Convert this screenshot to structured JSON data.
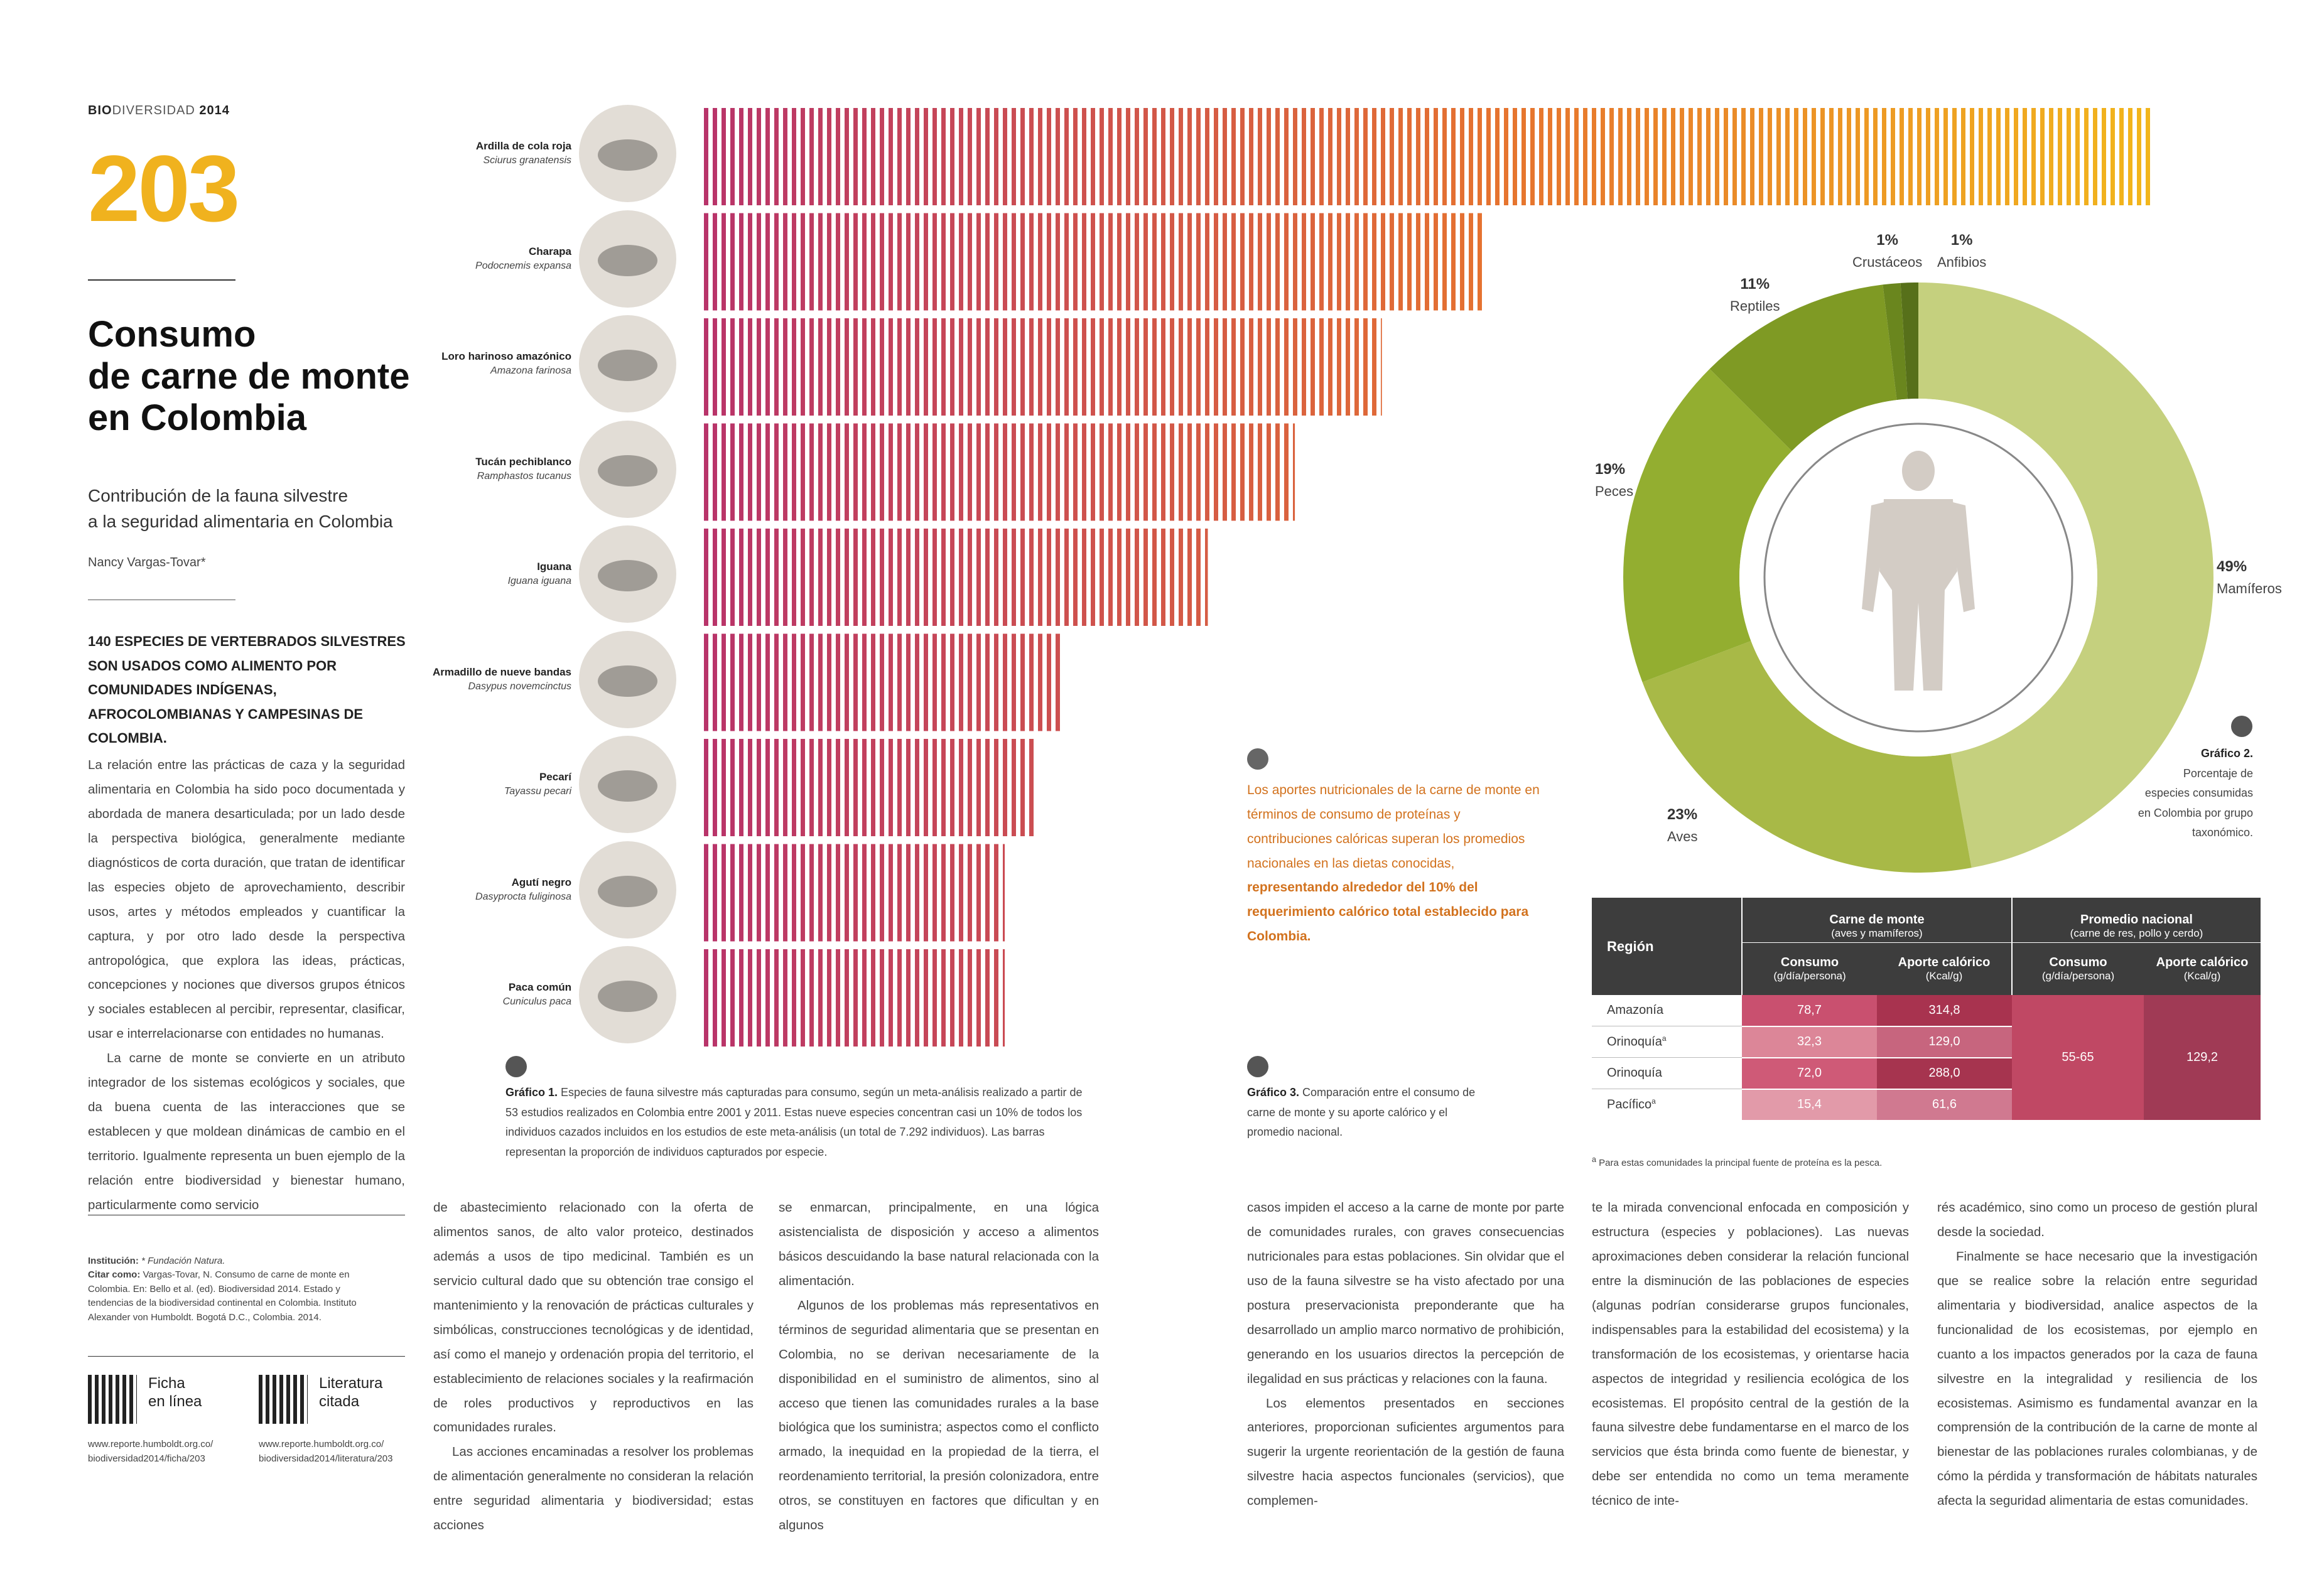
{
  "header": {
    "bold": "BIO",
    "light": "DIVERSIDAD",
    "year": "2014"
  },
  "page_number": "203",
  "title": {
    "line1": "Consumo",
    "line2": "de carne de monte",
    "line3": "en Colombia"
  },
  "subtitle": {
    "line1": "Contribución de la fauna silvestre",
    "line2": "a la seguridad alimentaria en Colombia"
  },
  "author": "Nancy Vargas-Tovar*",
  "lead": "140 ESPECIES DE VERTEBRADOS SILVESTRES SON USADOS COMO ALIMENTO POR COMUNIDADES INDÍGENAS, AFROCOLOMBIANAS Y CAMPESINAS DE COLOMBIA.",
  "col1": {
    "p1": "La relación entre las prácticas de caza y la seguridad alimentaria en Colombia ha sido poco documentada y abordada de manera desarticulada; por un lado desde la perspectiva biológica, generalmente mediante diagnósticos de corta duración, que tratan de identificar las especies objeto de aprovechamiento, describir usos, artes y métodos empleados y cuantificar la captura, y por otro lado desde la perspectiva antropológica, que explora las ideas, prácticas, concepciones y nociones que diversos grupos étnicos y sociales establecen al percibir, representar, clasificar, usar e interrelacionarse con entidades no humanas.",
    "p2": "La carne de monte se convierte en un atributo integrador de los sistemas ecológicos y sociales, que da buena cuenta de las interacciones que se establecen y que moldean dinámicas de cambio en el territorio. Igualmente representa un buen ejemplo de la relación entre biodiversidad y bienestar humano, particularmente como servicio"
  },
  "institution": {
    "label": "Institución:",
    "value": "* Fundación Natura."
  },
  "cite": {
    "label": "Citar como:",
    "value": "Vargas-Tovar, N. Consumo de carne de monte en Colombia. En: Bello et al. (ed). Biodiversidad 2014. Estado y tendencias de la biodiversidad continental en Colombia. Instituto Alexander von Humboldt. Bogotá D.C., Colombia. 2014."
  },
  "links": [
    {
      "label1": "Ficha",
      "label2": "en línea",
      "url1": "www.reporte.humboldt.org.co/",
      "url2": "biodiversidad2014/ficha/203"
    },
    {
      "label1": "Literatura",
      "label2": "citada",
      "url1": "www.reporte.humboldt.org.co/",
      "url2": "biodiversidad2014/literatura/203"
    }
  ],
  "species": [
    {
      "name": "Ardilla de cola roja",
      "sci": "Sciurus granatensis",
      "icon": "squirrel-icon"
    },
    {
      "name": "Charapa",
      "sci": "Podocnemis expansa",
      "icon": "turtle-icon"
    },
    {
      "name": "Loro harinoso amazónico",
      "sci": "Amazona farinosa",
      "icon": "parrot-icon"
    },
    {
      "name": "Tucán pechiblanco",
      "sci": "Ramphastos tucanus",
      "icon": "toucan-icon"
    },
    {
      "name": "Iguana",
      "sci": "Iguana iguana",
      "icon": "iguana-icon"
    },
    {
      "name": "Armadillo de nueve bandas",
      "sci": "Dasypus novemcinctus",
      "icon": "armadillo-icon"
    },
    {
      "name": "Pecarí",
      "sci": "Tayassu pecari",
      "icon": "peccary-icon"
    },
    {
      "name": "Agutí negro",
      "sci": "Dasyprocta fuliginosa",
      "icon": "agouti-icon"
    },
    {
      "name": "Paca común",
      "sci": "Cuniculus paca",
      "icon": "paca-icon"
    }
  ],
  "chart_data": [
    {
      "type": "bar",
      "orientation": "horizontal",
      "categories": [
        "Ardilla de cola roja",
        "Charapa",
        "Loro harinoso amazónico",
        "Tucán pechiblanco",
        "Iguana",
        "Armadillo de nueve bandas",
        "Pecarí",
        "Agutí negro",
        "Paca común"
      ],
      "values": [
        100,
        54,
        47,
        41,
        35,
        25,
        23,
        21,
        21
      ],
      "value_note": "relative proportion of individuals captured (longest bar = 100)",
      "colors": {
        "start": "#B8336A",
        "end": "#F2B61C"
      }
    },
    {
      "type": "pie",
      "donut": true,
      "labels": [
        "Mamíferos",
        "Aves",
        "Peces",
        "Reptiles",
        "Crustáceos",
        "Anfibios"
      ],
      "values": [
        49,
        23,
        19,
        11,
        1,
        1
      ],
      "display": [
        "49%",
        "23%",
        "19%",
        "11%",
        "1%",
        "1%"
      ],
      "colors": [
        "#C5D07E",
        "#A8B947",
        "#93AE30",
        "#7F9A24",
        "#6A861E",
        "#57701A"
      ],
      "center_icon": "human-silhouette-icon"
    }
  ],
  "grafico1": {
    "label": "Gráfico 1.",
    "text": "Especies de fauna silvestre más capturadas para consumo, según un meta-análisis realizado a partir de 53 estudios realizados en Colombia entre 2001 y 2011. Estas nueve especies concentran casi un 10% de todos los individuos cazados incluidos en los estudios de este meta-análisis (un total de 7.292 individuos). Las barras representan la proporción de individuos capturados por especie."
  },
  "grafico2": {
    "label": "Gráfico 2.",
    "l1": "Porcentaje de",
    "l2": "especies consumidas",
    "l3": "en Colombia por grupo",
    "l4": "taxonómico."
  },
  "grafico3": {
    "label": "Gráfico 3.",
    "text": "Comparación entre el consumo de carne de monte y su aporte calórico y el promedio nacional."
  },
  "highlight": {
    "normal": "Los aportes nutricionales de la carne de monte en términos de consumo de proteínas y contribuciones calóricas superan los promedios nacionales en las dietas conocidas, ",
    "bold": "representando alrededor del 10% del requerimiento calórico total establecido para Colombia."
  },
  "table": {
    "region_header": "Región",
    "group1": {
      "title": "Carne de monte",
      "sub": "(aves y mamíferos)"
    },
    "group2": {
      "title": "Promedio nacional",
      "sub": "(carne de res, pollo y cerdo)"
    },
    "col_consumo": "Consumo",
    "col_consumo_unit": "(g/día/persona)",
    "col_aporte": "Aporte calórico",
    "col_aporte_unit": "(Kcal/g)",
    "rows": [
      {
        "region": "Amazonía",
        "sup": "",
        "consumo": "78,7",
        "aporte": "314,8"
      },
      {
        "region": "Orinoquía",
        "sup": "a",
        "consumo": "32,3",
        "aporte": "129,0"
      },
      {
        "region": "Orinoquía",
        "sup": "",
        "consumo": "72,0",
        "aporte": "288,0"
      },
      {
        "region": "Pacífico",
        "sup": "a",
        "consumo": "15,4",
        "aporte": "61,6"
      }
    ],
    "national_consumo": "55-65",
    "national_aporte": "129,2",
    "footnote_sup": "a",
    "footnote": " Para estas comunidades la principal fuente de proteína es la pesca."
  },
  "col2": {
    "p1": "de abastecimiento relacionado con la oferta de alimentos sanos, de alto valor proteico, destinados además a usos de tipo medicinal. También es un servicio cultural dado que su obtención trae consigo el mantenimiento y la renovación de prácticas culturales y simbólicas, construcciones tecnológicas y de identidad, así como el manejo y ordenación propia del territorio, el establecimiento de relaciones sociales y la reafirmación de roles productivos y reproductivos en las comunidades rurales.",
    "p2": "Las acciones encaminadas a resolver los problemas de alimentación generalmente no consideran la relación entre seguridad alimentaria y biodiversidad; estas acciones"
  },
  "col3": {
    "p1": "se enmarcan, principalmente, en una lógica asistencialista de disposición y acceso a alimentos básicos descuidando la base natural relacionada con la alimentación.",
    "p2": "Algunos de los problemas más representativos en términos de seguridad alimentaria que se presentan en Colombia, no se derivan necesariamente de la disponibilidad en el suministro de alimentos, sino al acceso que tienen las comunidades rurales a la base biológica que los suministra; aspectos como el conflicto armado, la inequidad en la propiedad de la tierra, el reordenamiento territorial, la presión colonizadora, entre otros, se constituyen en factores que dificultan y en algunos"
  },
  "col4": {
    "p1": "casos impiden el acceso a la carne de monte por parte de comunidades rurales, con graves consecuencias nutricionales para estas poblaciones. Sin olvidar que el uso de la fauna silvestre se ha visto afectado por una postura preservacionista preponderante que ha desarrollado un amplio marco normativo de prohibición, generando en los usuarios directos la percepción de ilegalidad en sus prácticas y relaciones con la fauna.",
    "p2": "Los elementos presentados en secciones anteriores, proporcionan suficientes argumentos para sugerir la urgente reorientación de la gestión de fauna silvestre hacia aspectos funcionales (servicios), que complemen-"
  },
  "col5": {
    "p1": "te la mirada convencional enfocada en composición y estructura (especies y poblaciones). Las nuevas aproximaciones deben considerar la relación funcional entre la disminución de las poblaciones de especies (algunas podrían considerarse grupos funcionales, indispensables para la estabilidad del ecosistema) y la transformación de los ecosistemas, y orientarse hacia aspectos de integridad y resiliencia ecológica de los ecosistemas. El propósito central de la gestión de la fauna silvestre debe fundamentarse en el marco de los servicios que ésta brinda como fuente de bienestar, y debe ser entendida no como un tema meramente técnico de inte-"
  },
  "col6": {
    "p1": "rés académico, sino como un proceso de gestión plural desde la sociedad.",
    "p2": "Finalmente se hace necesario que la investigación que se realice sobre la relación entre seguridad alimentaria y biodiversidad, analice aspectos de la funcionalidad de los ecosistemas, por ejemplo en cuanto a los impactos generados por la caza de fauna silvestre en la integralidad y resiliencia de los ecosistemas. Asimismo es fundamental avanzar en la comprensión de la contribución de la carne de monte al bienestar de las poblaciones rurales colombianas, y de cómo la pérdida y transformación de hábitats naturales afecta la seguridad alimentaria de estas comunidades."
  }
}
